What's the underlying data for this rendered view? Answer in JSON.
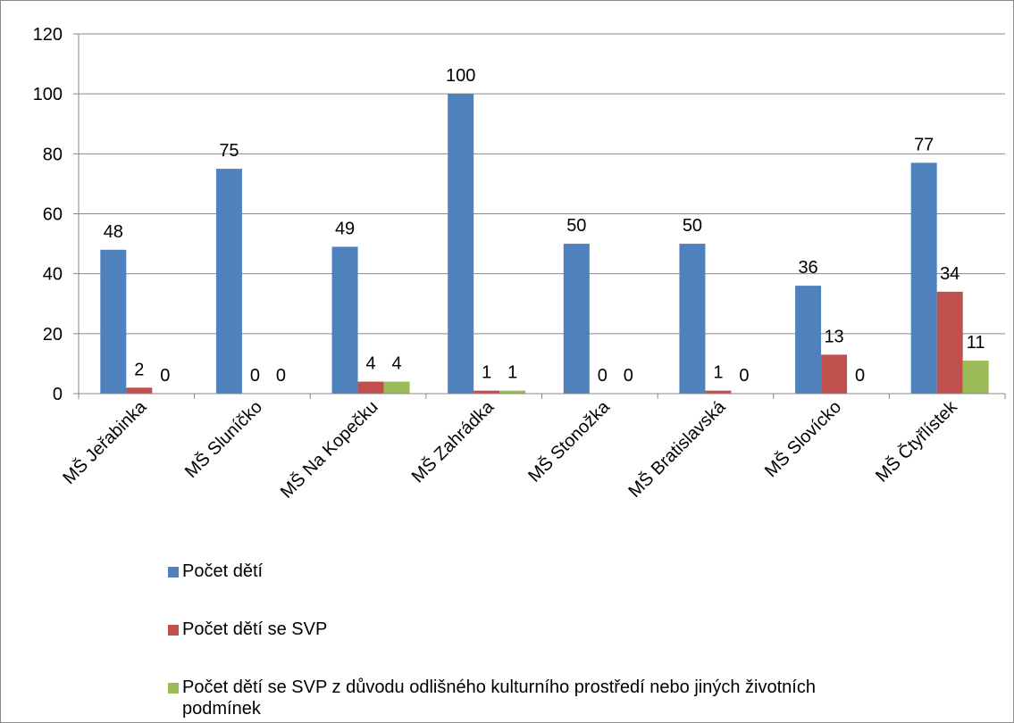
{
  "chart_data": {
    "type": "bar",
    "categories": [
      "MŠ Jeřabinka",
      "MŠ Sluníčko",
      "MŠ Na Kopečku",
      "MŠ Zahrádka",
      "MŠ Stonožka",
      "MŠ Bratislavská",
      "MŠ Slovícko",
      "MŠ Čtyřlístek"
    ],
    "series": [
      {
        "name": "Počet dětí",
        "color": "#4f81bd",
        "values": [
          48,
          75,
          49,
          100,
          50,
          50,
          36,
          77
        ]
      },
      {
        "name": "Počet dětí se SVP",
        "color": "#c0504d",
        "values": [
          2,
          0,
          4,
          1,
          0,
          1,
          13,
          34
        ]
      },
      {
        "name": "Počet dětí se SVP z důvodu odlišného kulturního prostředí nebo jiných životních podmínek",
        "color": "#9bbb59",
        "values": [
          0,
          0,
          4,
          1,
          0,
          0,
          0,
          11
        ]
      }
    ],
    "ylim": [
      0,
      120
    ],
    "yticks": [
      0,
      20,
      40,
      60,
      80,
      100,
      120
    ],
    "grid": true,
    "legend": "bottom"
  }
}
